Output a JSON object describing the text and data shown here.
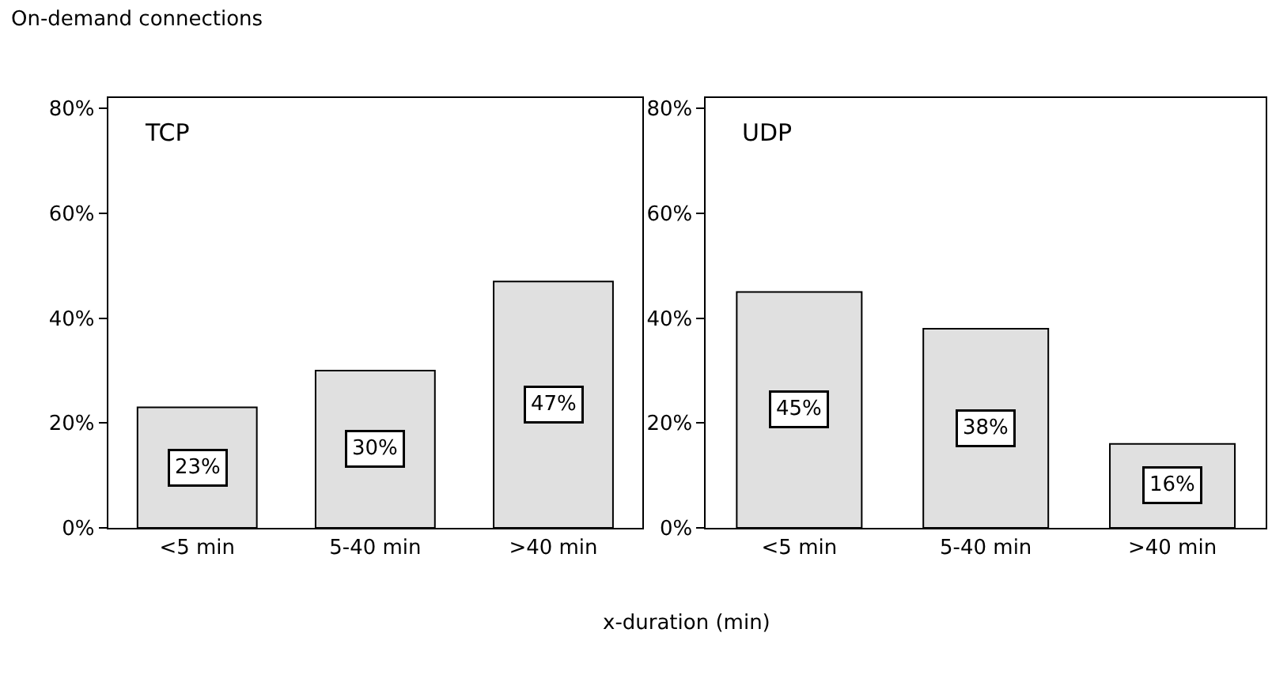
{
  "chart_data": [
    {
      "type": "bar",
      "title": "On-demand connections",
      "xlabel": "x-duration (min)",
      "annotations": [
        "TCP"
      ],
      "categories": [
        "<5 min",
        "5-40 min",
        ">40 min"
      ],
      "values": [
        23,
        30,
        47
      ],
      "value_labels": [
        "23%",
        "30%",
        "47%"
      ],
      "color": "#e0e0e0",
      "ylim": [
        0,
        82
      ],
      "yticks": [
        {
          "value": 0,
          "label": "0%"
        },
        {
          "value": 20,
          "label": "20%"
        },
        {
          "value": 40,
          "label": "40%"
        },
        {
          "value": 60,
          "label": "60%"
        },
        {
          "value": 80,
          "label": "80%"
        }
      ],
      "grid": false
    },
    {
      "type": "bar",
      "annotations": [
        "UDP"
      ],
      "categories": [
        "<5 min",
        "5-40 min",
        ">40 min"
      ],
      "values": [
        45,
        38,
        16
      ],
      "value_labels": [
        "45%",
        "38%",
        "16%"
      ],
      "color": "#e0e0e0",
      "ylim": [
        0,
        82
      ],
      "yticks": [
        {
          "value": 0,
          "label": "0%"
        },
        {
          "value": 20,
          "label": "20%"
        },
        {
          "value": 40,
          "label": "40%"
        },
        {
          "value": 60,
          "label": "60%"
        },
        {
          "value": 80,
          "label": "80%"
        }
      ],
      "grid": false
    }
  ]
}
